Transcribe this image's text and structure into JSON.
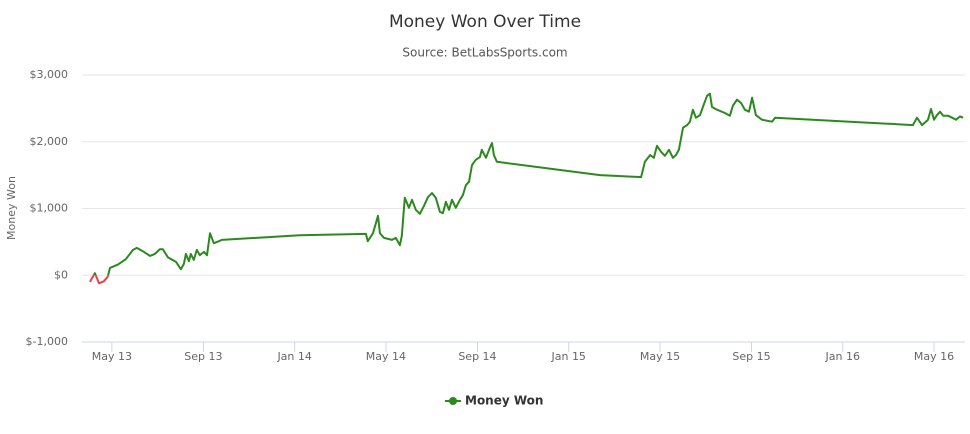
{
  "chart_data": {
    "type": "line",
    "title": "Money Won Over Time",
    "subtitle": "Source: BetLabsSports.com",
    "y_label": "Money Won",
    "x": [
      2013.253,
      2013.271,
      2013.286,
      2013.304,
      2013.318,
      2013.326,
      2013.355,
      2013.384,
      2013.41,
      2013.424,
      2013.446,
      2013.472,
      2013.49,
      2013.508,
      2013.519,
      2013.537,
      2013.567,
      2013.585,
      2013.596,
      2013.603,
      2013.614,
      2013.621,
      2013.632,
      2013.643,
      2013.654,
      2013.669,
      2013.68,
      2013.691,
      2013.705,
      2013.724,
      2013.734,
      2014.019,
      2014.26,
      2014.267,
      2014.286,
      2014.304,
      2014.311,
      2014.326,
      2014.355,
      2014.369,
      2014.384,
      2014.391,
      2014.402,
      2014.417,
      2014.428,
      2014.442,
      2014.457,
      2014.472,
      2014.486,
      2014.501,
      2014.515,
      2014.53,
      2014.541,
      2014.552,
      2014.563,
      2014.574,
      2014.588,
      2014.603,
      2014.614,
      2014.625,
      2014.636,
      2014.647,
      2014.661,
      2014.676,
      2014.683,
      2014.698,
      2014.713,
      2014.72,
      2014.727,
      2014.738,
      2015.114,
      2015.264,
      2015.278,
      2015.297,
      2015.311,
      2015.322,
      2015.337,
      2015.351,
      2015.366,
      2015.38,
      2015.391,
      2015.402,
      2015.417,
      2015.432,
      2015.442,
      2015.453,
      2015.464,
      2015.479,
      2015.494,
      2015.505,
      2015.515,
      2015.523,
      2015.541,
      2015.57,
      2015.588,
      2015.599,
      2015.614,
      2015.629,
      2015.643,
      2015.658,
      2015.669,
      2015.683,
      2015.705,
      2015.742,
      2015.753,
      2016.026,
      2016.256,
      2016.271,
      2016.289,
      2016.311,
      2016.322,
      2016.333,
      2016.344,
      2016.355,
      2016.366,
      2016.384,
      2016.399,
      2016.413,
      2016.428,
      2016.439
    ],
    "series": [
      {
        "name": "Money Won",
        "color": "#2b8a1e",
        "negative_color": "#e8434b",
        "values": [
          -100,
          30,
          -120,
          -90,
          -20,
          110,
          160,
          240,
          380,
          410,
          360,
          290,
          320,
          390,
          390,
          270,
          200,
          90,
          170,
          320,
          210,
          320,
          230,
          380,
          300,
          350,
          300,
          630,
          480,
          510,
          530,
          600,
          620,
          510,
          630,
          890,
          630,
          560,
          530,
          560,
          450,
          590,
          1160,
          1010,
          1130,
          980,
          920,
          1040,
          1170,
          1230,
          1160,
          950,
          930,
          1100,
          980,
          1130,
          1010,
          1130,
          1200,
          1350,
          1400,
          1650,
          1730,
          1770,
          1880,
          1760,
          1920,
          1980,
          1800,
          1700,
          1500,
          1470,
          1700,
          1800,
          1760,
          1940,
          1850,
          1790,
          1880,
          1760,
          1800,
          1880,
          2210,
          2250,
          2300,
          2480,
          2360,
          2400,
          2570,
          2690,
          2720,
          2520,
          2480,
          2430,
          2390,
          2540,
          2630,
          2580,
          2480,
          2450,
          2660,
          2400,
          2330,
          2300,
          2360,
          2300,
          2250,
          2360,
          2250,
          2330,
          2490,
          2330,
          2400,
          2450,
          2390,
          2390,
          2360,
          2330,
          2380,
          2360
        ]
      }
    ],
    "xlim": [
      2013.224,
      2016.446
    ],
    "xticks": [
      {
        "value": 2013.333,
        "label": "May 13"
      },
      {
        "value": 2013.667,
        "label": "Sep 13"
      },
      {
        "value": 2014.0,
        "label": "Jan 14"
      },
      {
        "value": 2014.333,
        "label": "May 14"
      },
      {
        "value": 2014.667,
        "label": "Sep 14"
      },
      {
        "value": 2015.0,
        "label": "Jan 15"
      },
      {
        "value": 2015.333,
        "label": "May 15"
      },
      {
        "value": 2015.667,
        "label": "Sep 15"
      },
      {
        "value": 2016.0,
        "label": "Jan 16"
      },
      {
        "value": 2016.333,
        "label": "May 16"
      }
    ],
    "ylim": [
      -1000,
      3000
    ],
    "yticks": [
      {
        "value": -1000,
        "label": "$-1,000"
      },
      {
        "value": 0,
        "label": "$0"
      },
      {
        "value": 1000,
        "label": "$1,000"
      },
      {
        "value": 2000,
        "label": "$2,000"
      },
      {
        "value": 3000,
        "label": "$3,000"
      }
    ],
    "grid": true,
    "legend": "bottom"
  }
}
